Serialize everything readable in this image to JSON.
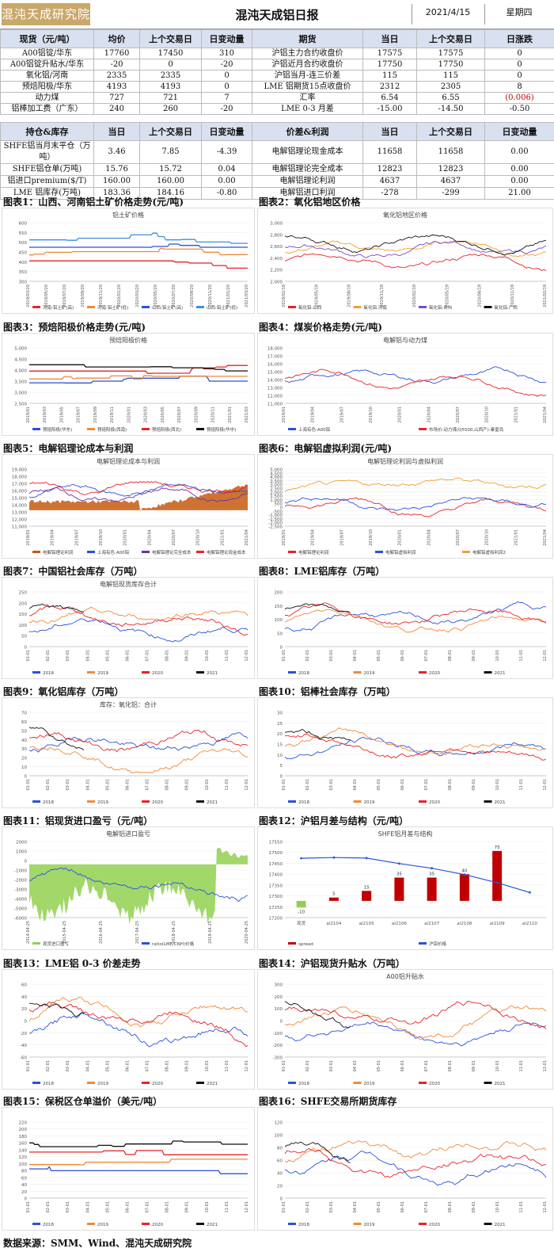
{
  "header": {
    "logo_text": "混沌天成研究院",
    "title": "混沌天成铝日报",
    "date": "2021/4/15",
    "weekday": "星期四"
  },
  "table1": {
    "headers": [
      "现货（元/吨）",
      "均价",
      "上个交易日",
      "日变动量",
      "期货",
      "当日",
      "上个交易日",
      "日涨跌"
    ],
    "rows": [
      [
        "A00铝锭/华东",
        "17760",
        "17450",
        "310",
        "沪铝主力合约收盘价",
        "17575",
        "17575",
        "0"
      ],
      [
        "A00铝锭升贴水/华东",
        "-20",
        "0",
        "-20",
        "沪铝近月合约收盘价",
        "17750",
        "17750",
        "0"
      ],
      [
        "氧化铝/河南",
        "2335",
        "2335",
        "0",
        "沪铝当月-连三价差",
        "115",
        "115",
        "0"
      ],
      [
        "预焙阳极/华东",
        "4193",
        "4193",
        "0",
        "LME 铝期货15点收盘价",
        "2312",
        "2305",
        "8"
      ],
      [
        "动力煤",
        "727",
        "721",
        "7",
        "汇率",
        "6.54",
        "6.55",
        "(0.006)"
      ],
      [
        "铝棒加工费（广东）",
        "240",
        "260",
        "-20",
        "LME 0-3 月差",
        "-15.00",
        "-14.50",
        "-0.50"
      ]
    ]
  },
  "table2": {
    "headers": [
      "持仓&库存",
      "当日",
      "上个交易日",
      "日变动量",
      "价差&利润",
      "当日",
      "上个交易日",
      "日变动量"
    ],
    "rows": [
      [
        "SHFE铝当月末平仓（万吨）",
        "3.46",
        "7.85",
        "-4.39",
        "电解铝理论现金成本",
        "11658",
        "11658",
        "0.00"
      ],
      [
        "SHFE铝仓单(万吨)",
        "15.76",
        "15.72",
        "0.04",
        "电解铝理论完全成本",
        "12823",
        "12823",
        "0.00"
      ],
      [
        "铝进口premium($/T)",
        "160.00",
        "160.00",
        "0.00",
        "电解铝理论利润",
        "4637",
        "4637",
        "0.00"
      ],
      [
        "LME 铝库存(万吨)",
        "183.36",
        "184.16",
        "-0.80",
        "电解铝进口利润",
        "-278",
        "-299",
        "21.00"
      ]
    ]
  },
  "figures": [
    {
      "title": "图表1：山西、河南铝土矿价格走势(元/吨)",
      "chart_title": "铝土矿价格",
      "type": "line",
      "style": "step",
      "yticks": [
        "300",
        "350",
        "400",
        "450",
        "500",
        "550",
        "600"
      ],
      "xticks": [
        "2019/03/20",
        "2019/05/20",
        "2019/07/20",
        "2019/09/20",
        "2019/11/20",
        "2020/01/20",
        "2020/03/20",
        "2020/05/20",
        "2020/07/20",
        "2020/09/20",
        "2020/11/20",
        "2021/01/20",
        "2021/03/20"
      ],
      "legend": [
        "河南:铝土矿(高)",
        "河南:铝土矿(低)",
        "山西:铝土矿(高)",
        "山西:铝土矿(低)"
      ],
      "colors": [
        "#e8232a",
        "#f08a3a",
        "#2952d9",
        "#3b8fe0"
      ]
    },
    {
      "title": "图表2：氧化铝地区价格",
      "chart_title": "氧化铝地区价格",
      "type": "line",
      "style": "noisy",
      "yticks": [
        "2,000",
        "2,200",
        "2,400",
        "2,600",
        "2,800",
        "3,000"
      ],
      "xticks": [
        "2019/02/19",
        "2019/05/19",
        "2019/08/19",
        "2019/11/19",
        "2020/02/19",
        "2020/05/19",
        "2020/08/19",
        "2020/11/19",
        "2021/02/19"
      ],
      "legend": [
        "氧化铝:山西",
        "氧化铝:河南",
        "氧化铝:贵州",
        "氧化铝:广西"
      ],
      "colors": [
        "#e8232a",
        "#f0a030",
        "#7a4bd0",
        "#111111"
      ]
    },
    {
      "title": "图表3：预焙阳极价格走势(元/吨)",
      "chart_title": "预焙阳极价格",
      "type": "line",
      "style": "step",
      "yticks": [
        "2,500",
        "3,000",
        "3,500",
        "4,000",
        "4,500",
        "5,000"
      ],
      "xticks": [
        "2019/01",
        "2019/03",
        "2019/05",
        "2019/07",
        "2019/09",
        "2019/11",
        "2020/01",
        "2020/03",
        "2020/05",
        "2020/07",
        "2020/09",
        "2020/11",
        "2021/01",
        "2021/03"
      ],
      "legend": [
        "预焙阳极(华东)",
        "预焙阳极(西南)",
        "预焙阳极(西北)",
        "预焙阳极(华中)"
      ],
      "colors": [
        "#2952d9",
        "#f08a3a",
        "#e8232a",
        "#111111"
      ]
    },
    {
      "title": "图表4：煤炭价格走势(元/吨)",
      "chart_title": "电解铝与动力煤",
      "type": "line",
      "style": "noisy",
      "yticks": [
        "11,000",
        "12,000",
        "13,000",
        "14,000",
        "15,000",
        "16,000",
        "17,000",
        "18,000"
      ],
      "xticks": [
        "2019/01",
        "2019/04",
        "2019/07",
        "2019/10",
        "2020/01",
        "2020/04",
        "2020/07",
        "2020/10",
        "2021/01",
        "2021/04"
      ],
      "legend": [
        "上海有色:A00铝",
        "市场价:动力煤(Q5500,山西产):秦皇岛"
      ],
      "colors": [
        "#2952d9",
        "#e8232a"
      ]
    },
    {
      "title": "图表5：电解铝理论成本与利润",
      "chart_title": "电解铝理论成本与利润",
      "type": "area",
      "style": "area",
      "yticks": [
        "11,000",
        "12,000",
        "13,000",
        "14,000",
        "15,000",
        "16,000",
        "17,000",
        "18,000",
        "19,000"
      ],
      "xticks": [
        "2019/01",
        "2019/04",
        "2019/07",
        "2019/10",
        "2020/01",
        "2020/04",
        "2020/07",
        "2020/10",
        "2021/01",
        "2021/04"
      ],
      "legend": [
        "电解铝理论利润",
        "上海有色:A00铝",
        "电解铝理论完全成本",
        "电解铝理论现金成本"
      ],
      "colors": [
        "#c55a11",
        "#2952d9",
        "#7030a0",
        "#e8232a"
      ]
    },
    {
      "title": "图表6：电解铝虚拟利润(元/吨)",
      "chart_title": "电解铝理论利润与虚拟利润",
      "type": "line",
      "style": "noisy",
      "yticks": [
        "-2,500",
        "-2,000",
        "-1,500",
        "-1,000",
        "-500",
        "0",
        "500",
        "1,000",
        "1,500",
        "2,000",
        "2,500",
        "3,000",
        "3,500",
        "4,000",
        "4,500",
        "5,000"
      ],
      "xticks": [
        "2019/01",
        "2019/04",
        "2019/07",
        "2019/10",
        "2020/01",
        "2020/04",
        "2020/07",
        "2020/10",
        "2021/01",
        "2021/04"
      ],
      "legend": [
        "电解铝理论利润",
        "电解铝虚拟利润",
        "电解铝虚拟利润2"
      ],
      "colors": [
        "#e8232a",
        "#2952d9",
        "#f0a030"
      ]
    },
    {
      "title": "图表7：中国铝社会库存（万吨）",
      "chart_title": "电解铝现货库存合计",
      "type": "line",
      "style": "season",
      "yticks": [
        "0",
        "50",
        "100",
        "150",
        "200",
        "250"
      ],
      "xticks": [
        "01-01",
        "02-01",
        "03-01",
        "04-01",
        "05-01",
        "06-01",
        "07-01",
        "08-01",
        "09-01",
        "10-01",
        "11-01",
        "12-01"
      ],
      "legend": [
        "2018",
        "2019",
        "2020",
        "2021"
      ],
      "colors": [
        "#2952d9",
        "#f08a3a",
        "#e8232a",
        "#111111"
      ]
    },
    {
      "title": "图表8：LME铝库存（万吨）",
      "chart_title": "",
      "type": "line",
      "style": "season",
      "yticks": [
        "0",
        "50",
        "100",
        "150",
        "200"
      ],
      "xticks": [
        "01-01",
        "02-01",
        "03-01",
        "04-01",
        "05-01",
        "06-01",
        "07-01",
        "08-01",
        "09-01",
        "10-01",
        "11-01",
        "12-01"
      ],
      "legend": [
        "2018",
        "2019",
        "2020",
        "2021"
      ],
      "colors": [
        "#2952d9",
        "#f08a3a",
        "#e8232a",
        "#111111"
      ]
    },
    {
      "title": "图表9：氧化铝库存（万吨）",
      "chart_title": "库存：氧化铝：合计",
      "type": "line",
      "style": "season",
      "yticks": [
        "0",
        "10",
        "20",
        "30",
        "40",
        "50",
        "60",
        "70"
      ],
      "xticks": [
        "01-01",
        "02-01",
        "03-01",
        "04-01",
        "05-01",
        "06-01",
        "07-01",
        "08-01",
        "09-01",
        "10-01",
        "11-01",
        "12-01"
      ],
      "legend": [
        "2018",
        "2019",
        "2020",
        "2021"
      ],
      "colors": [
        "#2952d9",
        "#f08a3a",
        "#e8232a",
        "#111111"
      ]
    },
    {
      "title": "图表10：铝棒社会库存（万吨）",
      "chart_title": "",
      "type": "line",
      "style": "season",
      "yticks": [
        "0",
        "5",
        "10",
        "15",
        "20",
        "25",
        "30"
      ],
      "xticks": [
        "01-01",
        "02-01",
        "03-01",
        "04-01",
        "05-01",
        "06-01",
        "07-01",
        "08-01",
        "09-01",
        "10-01",
        "11-01",
        "12-01"
      ],
      "legend": [
        "2018",
        "2019",
        "2020",
        "2021"
      ],
      "colors": [
        "#2952d9",
        "#f08a3a",
        "#e8232a",
        "#111111"
      ]
    },
    {
      "title": "图表11：铝现货进口盈亏（元/吨）",
      "chart_title": "电解铝进口盈亏",
      "type": "area",
      "style": "imp",
      "yticks": [
        "-6000",
        "-5000",
        "-4000",
        "-3000",
        "-2000",
        "-1000",
        "0",
        "1000",
        "2000"
      ],
      "xticks": [
        "2014-04-25",
        "2015-04-25",
        "2016-04-25",
        "2017-04-25",
        "2018-04-25",
        "2019-04-25",
        "2020-04-25"
      ],
      "legend": [
        "现货进口盈亏",
        "ratio(LME/CNH)价格"
      ],
      "colors": [
        "#92d050",
        "#2952d9",
        "#c00000"
      ]
    },
    {
      "title": "图表12：沪铝月差与结构（元/吨）",
      "chart_title": "SHFE铝月差与结构",
      "type": "bar",
      "style": "bar",
      "categories": [
        "现货",
        "al2104",
        "al2105",
        "al2106",
        "al2107",
        "al2108",
        "al2109",
        "al2110"
      ],
      "bar_values": [
        -10,
        5,
        15,
        35,
        35,
        40,
        75,
        0
      ],
      "bar_labels": [
        "-10",
        "5",
        "15",
        "35",
        "35",
        "40",
        "75",
        ""
      ],
      "yticks": [
        "17200",
        "17250",
        "17300",
        "17350",
        "17400",
        "17450",
        "17500",
        "17550"
      ],
      "legend": [
        "spread",
        "沪铝价格"
      ],
      "colors": [
        "#c00000",
        "#2952d9",
        "#92d050"
      ]
    },
    {
      "title": "图表13：LME铝 0-3 价差走势",
      "chart_title": "",
      "type": "line",
      "style": "season",
      "yticks": [
        "-60",
        "-40",
        "-20",
        "0",
        "20",
        "40",
        "60"
      ],
      "xticks": [
        "01-01",
        "02-01",
        "03-01",
        "04-01",
        "05-01",
        "06-01",
        "07-01",
        "08-01",
        "09-01",
        "10-01",
        "11-01",
        "12-01"
      ],
      "legend": [
        "2018",
        "2019",
        "2020",
        "2021"
      ],
      "colors": [
        "#2952d9",
        "#f08a3a",
        "#e8232a",
        "#111111"
      ]
    },
    {
      "title": "图表14：沪铝现货升贴水（万吨）",
      "chart_title": "A00铝升贴水",
      "type": "line",
      "style": "season",
      "yticks": [
        "-300",
        "-200",
        "-100",
        "0",
        "100",
        "200",
        "300"
      ],
      "xticks": [
        "01-01",
        "02-01",
        "03-01",
        "04-01",
        "05-01",
        "06-01",
        "07-01",
        "08-01",
        "09-01",
        "10-01",
        "11-01",
        "12-01"
      ],
      "legend": [
        "2018",
        "2019",
        "2020",
        "2021"
      ],
      "colors": [
        "#2952d9",
        "#f08a3a",
        "#e8232a",
        "#111111"
      ]
    },
    {
      "title": "图表15：保税区仓单溢价（美元/吨）",
      "chart_title": "",
      "type": "line",
      "style": "step",
      "yticks": [
        "0",
        "20",
        "40",
        "60",
        "80",
        "100",
        "120",
        "140",
        "160",
        "180",
        "200",
        "220"
      ],
      "xticks": [
        "01-01",
        "02-01",
        "03-01",
        "04-01",
        "05-01",
        "06-01",
        "07-01",
        "08-01",
        "09-01",
        "10-01",
        "11-01",
        "12-01"
      ],
      "legend": [
        "2018",
        "2019",
        "2020",
        "2021"
      ],
      "colors": [
        "#2952d9",
        "#f08a3a",
        "#e8232a",
        "#111111"
      ]
    },
    {
      "title": "图表16：SHFE交易所期货库存",
      "chart_title": "",
      "type": "line",
      "style": "season",
      "yticks": [
        "0",
        "20",
        "40",
        "60",
        "80",
        "100",
        "120"
      ],
      "xticks": [
        "01-01",
        "02-01",
        "03-01",
        "04-01",
        "05-01",
        "06-01",
        "07-01",
        "08-01",
        "09-01",
        "10-01",
        "11-01",
        "12-01"
      ],
      "legend": [
        "2018",
        "2019",
        "2020",
        "2021"
      ],
      "colors": [
        "#2952d9",
        "#f08a3a",
        "#e8232a",
        "#111111"
      ]
    }
  ],
  "footer": "数据来源：SMM、Wind、混沌天成研究院"
}
